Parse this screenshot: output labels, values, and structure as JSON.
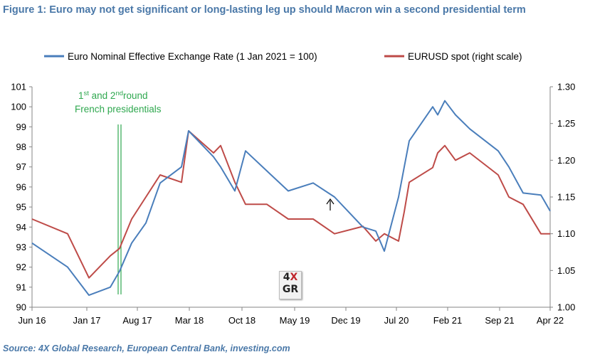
{
  "title": "Figure 1: Euro may not get significant or long-lasting leg up should Macron win a second presidential term",
  "source": "Source: 4X Global Research, European Central Bank, investing.com",
  "colors": {
    "neer": "#4a7ebb",
    "eurusd": "#be4b48",
    "annotation": "#2fa84f",
    "title": "#4a78a8"
  },
  "logo": {
    "top": "4X",
    "bottom": "GR"
  },
  "chart_data": {
    "type": "line",
    "title": "",
    "x_tick_labels": [
      "Jun 16",
      "Jan 17",
      "Aug 17",
      "Mar 18",
      "Oct 18",
      "May 19",
      "Dec 19",
      "Jul 20",
      "Feb 21",
      "Sep 21",
      "Apr 22"
    ],
    "x": [
      "Jun 16",
      "Nov 16",
      "Jan 17",
      "Mar 17",
      "Apr 17",
      "May 17",
      "Jul 17",
      "Aug 17",
      "Oct 17",
      "Jan 18",
      "Mar 18",
      "May 18",
      "Jul 18",
      "Oct 18",
      "Jan 19",
      "May 19",
      "Aug 19",
      "Oct 19",
      "Dec 19",
      "Feb 20",
      "Mar 20",
      "Apr 20",
      "Jun 20",
      "Jul 20",
      "Sep 20",
      "Dec 20",
      "Feb 21",
      "Apr 21",
      "Jun 21",
      "Sep 21",
      "Nov 21",
      "Jan 22",
      "Mar 22",
      "Apr 22"
    ],
    "left_axis": {
      "range": [
        90,
        101
      ],
      "ticks": [
        "90",
        "91",
        "92",
        "93",
        "94",
        "95",
        "96",
        "97",
        "98",
        "99",
        "100",
        "101"
      ]
    },
    "right_axis": {
      "range": [
        1.0,
        1.3
      ],
      "ticks": [
        "1.00",
        "1.05",
        "1.10",
        "1.15",
        "1.20",
        "1.25",
        "1.30"
      ]
    },
    "series": [
      {
        "name": "Euro Nominal Effective Exchange Rate (1 Jan 2021 = 100)",
        "axis": "left",
        "values": [
          93.2,
          92.0,
          90.6,
          91.0,
          91.8,
          93.2,
          94.2,
          96.2,
          97.0,
          97.0,
          98.8,
          97.5,
          95.8,
          97.8,
          96.8,
          95.8,
          96.2,
          95.5,
          94.0,
          93.8,
          92.8,
          95.5,
          97.0,
          98.3,
          100.0,
          99.6,
          100.3,
          99.6,
          98.9,
          97.8,
          97.0,
          95.7,
          95.6,
          94.8
        ]
      },
      {
        "name": "EURUSD spot (right scale)",
        "axis": "right",
        "values": [
          1.12,
          1.1,
          1.04,
          1.07,
          1.08,
          1.12,
          1.15,
          1.18,
          1.17,
          1.22,
          1.24,
          1.21,
          1.17,
          1.14,
          1.14,
          1.12,
          1.12,
          1.1,
          1.11,
          1.09,
          1.1,
          1.09,
          1.13,
          1.17,
          1.19,
          1.21,
          1.22,
          1.2,
          1.21,
          1.18,
          1.15,
          1.14,
          1.1,
          1.1
        ]
      }
    ],
    "legend_position": "top",
    "grid": false,
    "annotations": [
      {
        "line1_a": "1",
        "line1_sup": "st",
        "line1_b": " and 2",
        "line1_sup2": "nd",
        "line1_c": "round",
        "line2": "French presidentials",
        "at": "May 17"
      }
    ]
  }
}
